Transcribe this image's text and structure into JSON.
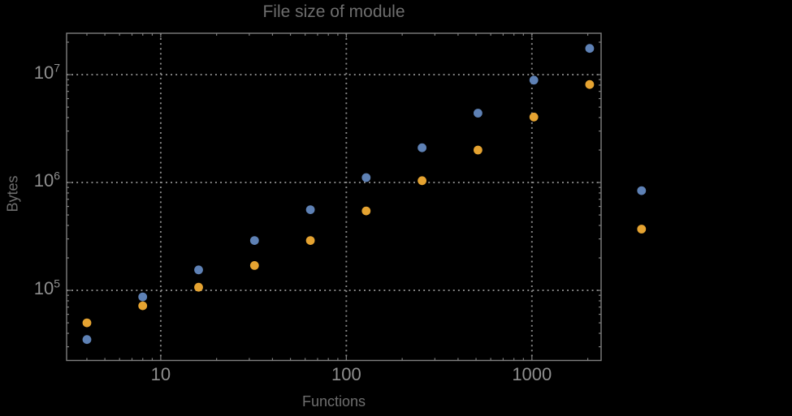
{
  "chart_data": {
    "type": "scatter",
    "title": "File size of module",
    "xlabel": "Functions",
    "ylabel": "Bytes",
    "x_scale": "log",
    "y_scale": "log",
    "xlim": [
      3.11,
      2360
    ],
    "ylim": [
      22400,
      24200000
    ],
    "grid": "dotted",
    "legend": "none",
    "x_ticks": [
      {
        "value": 10,
        "label": "10"
      },
      {
        "value": 100,
        "label": "100"
      },
      {
        "value": 1000,
        "label": "1000"
      }
    ],
    "y_ticks": [
      {
        "value": 100000,
        "base": "10",
        "exp": "5"
      },
      {
        "value": 1000000,
        "base": "10",
        "exp": "6"
      },
      {
        "value": 10000000,
        "base": "10",
        "exp": "7"
      }
    ],
    "series": [
      {
        "name": "blue",
        "color": "#5E81B5",
        "points": [
          [
            4,
            35000
          ],
          [
            8,
            87000
          ],
          [
            16,
            155000
          ],
          [
            32,
            290000
          ],
          [
            64,
            560000
          ],
          [
            128,
            1110000
          ],
          [
            256,
            2100000
          ],
          [
            512,
            4400000
          ],
          [
            1024,
            8900000
          ],
          [
            2048,
            17500000
          ],
          [
            3900,
            840000
          ]
        ]
      },
      {
        "name": "orange",
        "color": "#E5A331",
        "points": [
          [
            4,
            50000
          ],
          [
            8,
            72000
          ],
          [
            16,
            107000
          ],
          [
            32,
            170000
          ],
          [
            64,
            290000
          ],
          [
            128,
            545000
          ],
          [
            256,
            1040000
          ],
          [
            512,
            2000000
          ],
          [
            1024,
            4050000
          ],
          [
            2048,
            8100000
          ],
          [
            3900,
            370000
          ]
        ]
      }
    ]
  },
  "colors": {
    "background": "#000000",
    "frame": "#7f7f7f",
    "grid": "#8d8d8d",
    "tick_labels": "#8f8f8f",
    "title": "#6e6e6e",
    "axis_labels": "#6e6e6e"
  }
}
